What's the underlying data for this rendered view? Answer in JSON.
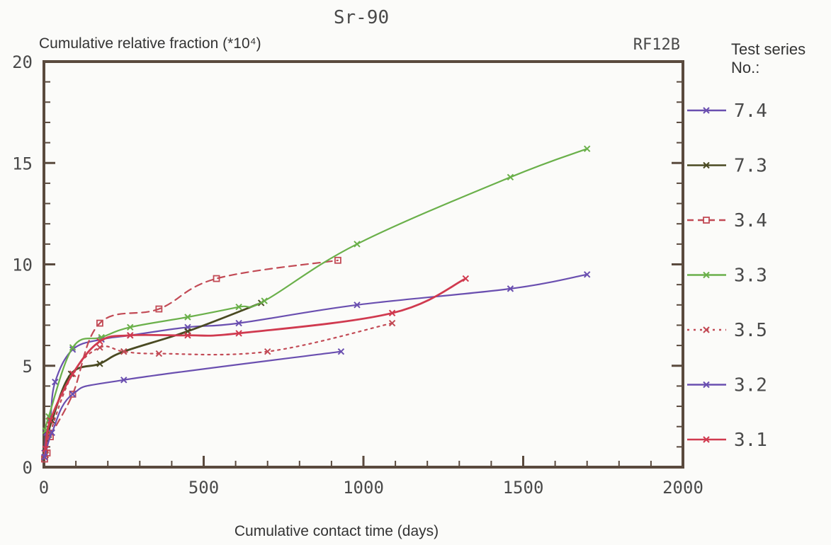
{
  "chart_data": {
    "type": "line",
    "title": "Sr-90",
    "ylabel": "Cumulative relative fraction (*10⁴)",
    "xlabel": "Cumulative contact time (days)",
    "corner_label": "RF12B",
    "legend_title": "Test series No.:",
    "legend_placement": "right",
    "xlim": [
      0,
      2000
    ],
    "ylim": [
      0,
      20
    ],
    "x_ticks": [
      0,
      500,
      1000,
      1500,
      2000
    ],
    "y_ticks": [
      0,
      5,
      10,
      15,
      20
    ],
    "grid": false,
    "series": [
      {
        "name": "7.4",
        "color": "#6a4fb0",
        "dash": "",
        "marker": "x",
        "points": [
          [
            2,
            0.7
          ],
          [
            8,
            1.7
          ],
          [
            20,
            2.4
          ],
          [
            35,
            4.2
          ],
          [
            90,
            5.8
          ],
          [
            180,
            6.3
          ],
          [
            270,
            6.5
          ],
          [
            450,
            6.9
          ],
          [
            610,
            7.1
          ],
          [
            980,
            8.0
          ],
          [
            1460,
            8.8
          ],
          [
            1700,
            9.5
          ]
        ]
      },
      {
        "name": "7.3",
        "color": "#4a4a22",
        "dash": "",
        "marker": "x",
        "points": [
          [
            5,
            0.6
          ],
          [
            15,
            1.6
          ],
          [
            25,
            2.3
          ],
          [
            85,
            4.6
          ],
          [
            175,
            5.1
          ],
          [
            250,
            5.7
          ],
          [
            450,
            6.7
          ],
          [
            680,
            8.1
          ]
        ]
      },
      {
        "name": "3.4",
        "color": "#c24a55",
        "dash": "10,7",
        "marker": "square",
        "points": [
          [
            2,
            0.4
          ],
          [
            10,
            0.7
          ],
          [
            20,
            1.5
          ],
          [
            90,
            3.6
          ],
          [
            175,
            7.1
          ],
          [
            360,
            7.8
          ],
          [
            540,
            9.3
          ],
          [
            920,
            10.2
          ]
        ]
      },
      {
        "name": "3.3",
        "color": "#6ab04a",
        "dash": "",
        "marker": "x",
        "points": [
          [
            5,
            1.8
          ],
          [
            15,
            2.5
          ],
          [
            90,
            5.9
          ],
          [
            180,
            6.4
          ],
          [
            270,
            6.9
          ],
          [
            450,
            7.4
          ],
          [
            610,
            7.9
          ],
          [
            690,
            8.2
          ],
          [
            980,
            11.0
          ],
          [
            1460,
            14.3
          ],
          [
            1700,
            15.7
          ]
        ]
      },
      {
        "name": "3.5",
        "color": "#c24a55",
        "dash": "3,6",
        "marker": "x",
        "points": [
          [
            2,
            0.5
          ],
          [
            20,
            1.7
          ],
          [
            90,
            4.6
          ],
          [
            175,
            5.9
          ],
          [
            250,
            5.7
          ],
          [
            360,
            5.6
          ],
          [
            700,
            5.7
          ],
          [
            1090,
            7.1
          ]
        ]
      },
      {
        "name": "3.2",
        "color": "#6a4fb0",
        "dash": "",
        "marker": "x",
        "points": [
          [
            2,
            0.5
          ],
          [
            25,
            1.7
          ],
          [
            90,
            3.6
          ],
          [
            250,
            4.3
          ],
          [
            930,
            5.7
          ]
        ]
      },
      {
        "name": "3.1",
        "color": "#d03a4f",
        "dash": "",
        "marker": "x",
        "points": [
          [
            5,
            0.9
          ],
          [
            20,
            2.3
          ],
          [
            90,
            4.6
          ],
          [
            175,
            6.2
          ],
          [
            270,
            6.5
          ],
          [
            450,
            6.5
          ],
          [
            610,
            6.6
          ],
          [
            1090,
            7.6
          ],
          [
            1320,
            9.3
          ]
        ]
      }
    ]
  }
}
